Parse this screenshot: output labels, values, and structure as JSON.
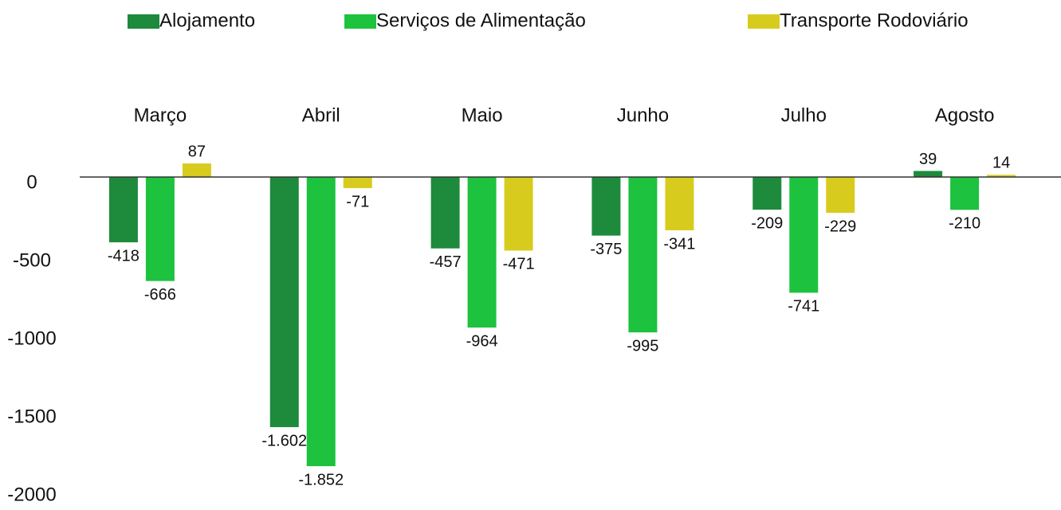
{
  "chart_data": {
    "type": "bar",
    "categories": [
      "Março",
      "Abril",
      "Maio",
      "Junho",
      "Julho",
      "Agosto"
    ],
    "series": [
      {
        "name": "Alojamento",
        "color": "#1e8a3c",
        "values": [
          -418,
          -1602,
          -457,
          -375,
          -209,
          39
        ],
        "value_labels": [
          "-418",
          "-1.602",
          "-457",
          "-375",
          "-209",
          "39"
        ]
      },
      {
        "name": "Serviços de Alimentação",
        "color": "#1dc23f",
        "values": [
          -666,
          -1852,
          -964,
          -995,
          -741,
          -210
        ],
        "value_labels": [
          "-666",
          "-1.852",
          "-964",
          "-995",
          "-741",
          "-210"
        ]
      },
      {
        "name": "Transporte Rodoviário",
        "color": "#d7cc1e",
        "values": [
          87,
          -71,
          -471,
          -341,
          -229,
          14
        ],
        "value_labels": [
          "87",
          "-71",
          "-471",
          "-341",
          "-229",
          "14"
        ]
      }
    ],
    "ylim": [
      -2000,
      200
    ],
    "yticks": [
      0,
      -500,
      -1000,
      -1500,
      -2000
    ],
    "legend": "top"
  }
}
